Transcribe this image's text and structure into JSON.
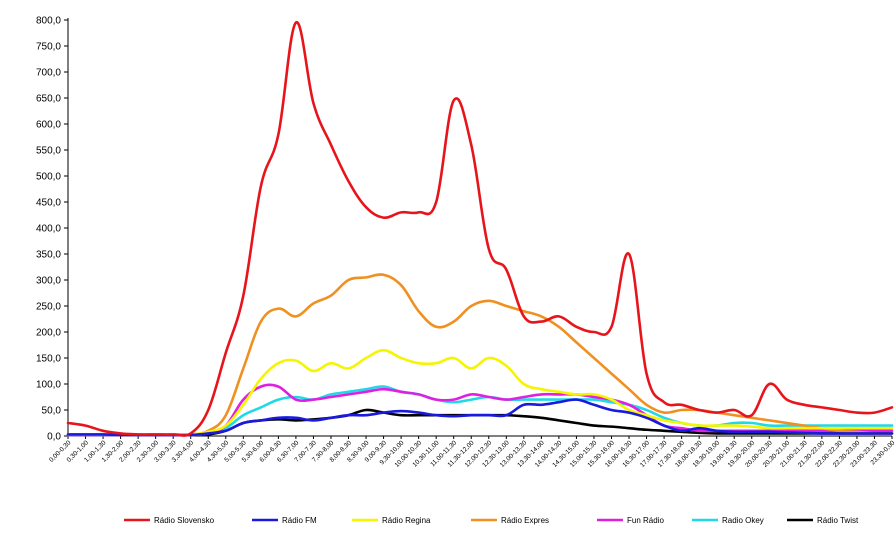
{
  "chart_data": {
    "type": "line",
    "title": "",
    "xlabel": "",
    "ylabel": "",
    "ylim": [
      0,
      800
    ],
    "yticks": [
      "0,0",
      "50,0",
      "100,0",
      "150,0",
      "200,0",
      "250,0",
      "300,0",
      "350,0",
      "400,0",
      "450,0",
      "500,0",
      "550,0",
      "600,0",
      "650,0",
      "700,0",
      "750,0",
      "800,0"
    ],
    "categories": [
      "0,00-0,30",
      "0,30-1,00",
      "1,00-1,30",
      "1,30-2,00",
      "2,00-2,30",
      "2,30-3,00",
      "3,00-3,30",
      "3,30-4,00",
      "4,00-4,30",
      "4,30-5,00",
      "5,00-5,30",
      "5,30-6,00",
      "6,00-6,30",
      "6,30-7,00",
      "7,00-7,30",
      "7,30-8,00",
      "8,00-8,30",
      "8,30-9,00",
      "9,00-9,30",
      "9,30-10,00",
      "10,00-10,30",
      "10,30-11,00",
      "11,00-11,30",
      "11,30-12,00",
      "12,00-12,30",
      "12,30-13,00",
      "13,00-13,30",
      "13,30-14,00",
      "14,00-14,30",
      "14,30-15,00",
      "15,00-15,30",
      "15,30-16,00",
      "16,00-16,30",
      "16,30-17,00",
      "17,00-17,30",
      "17,30-18,00",
      "18,00-18,30",
      "18,30-19,00",
      "19,00-19,30",
      "19,30-20,00",
      "20,00-20,30",
      "20,30-21,00",
      "21,00-21,30",
      "21,30-22,00",
      "22,00-22,30",
      "22,30-23,00",
      "23,00-23,30",
      "23,30-0,00"
    ],
    "grid": false,
    "legend_position": "bottom",
    "series": [
      {
        "name": "Rádio Slovensko",
        "color": "#e8141c",
        "values": [
          25,
          20,
          10,
          5,
          3,
          3,
          3,
          5,
          50,
          160,
          270,
          480,
          580,
          795,
          640,
          560,
          490,
          440,
          420,
          430,
          430,
          450,
          645,
          560,
          360,
          320,
          230,
          220,
          230,
          210,
          200,
          210,
          350,
          120,
          65,
          60,
          50,
          45,
          50,
          40,
          100,
          70,
          60,
          55,
          50,
          45,
          45,
          55
        ]
      },
      {
        "name": "Rádio FM",
        "color": "#1a1adf",
        "values": [
          3,
          3,
          3,
          2,
          2,
          2,
          2,
          2,
          5,
          10,
          25,
          30,
          35,
          35,
          30,
          35,
          40,
          40,
          45,
          48,
          45,
          40,
          38,
          40,
          40,
          40,
          60,
          60,
          65,
          70,
          60,
          50,
          45,
          35,
          20,
          10,
          15,
          10,
          8,
          8,
          8,
          7,
          6,
          5,
          5,
          5,
          5,
          5
        ]
      },
      {
        "name": "Rádio Regina",
        "color": "#f5f500",
        "values": [
          3,
          3,
          3,
          3,
          3,
          3,
          3,
          3,
          8,
          20,
          60,
          110,
          140,
          145,
          125,
          140,
          130,
          150,
          165,
          150,
          140,
          140,
          150,
          130,
          150,
          135,
          100,
          90,
          85,
          80,
          80,
          70,
          50,
          40,
          30,
          25,
          20,
          20,
          20,
          18,
          15,
          15,
          15,
          15,
          15,
          15,
          15,
          15
        ]
      },
      {
        "name": "Rádio Expres",
        "color": "#f09020",
        "values": [
          3,
          3,
          3,
          3,
          3,
          3,
          3,
          3,
          10,
          40,
          130,
          220,
          245,
          230,
          255,
          270,
          300,
          305,
          310,
          290,
          240,
          210,
          220,
          250,
          260,
          250,
          240,
          230,
          210,
          180,
          150,
          120,
          90,
          60,
          45,
          50,
          50,
          45,
          40,
          35,
          30,
          25,
          20,
          15,
          10,
          8,
          5,
          5
        ]
      },
      {
        "name": "Fun Rádio",
        "color": "#e020e0",
        "values": [
          2,
          2,
          2,
          2,
          2,
          2,
          2,
          2,
          5,
          20,
          70,
          95,
          95,
          70,
          70,
          75,
          80,
          85,
          90,
          85,
          80,
          70,
          70,
          80,
          75,
          70,
          75,
          80,
          80,
          80,
          75,
          70,
          60,
          40,
          20,
          15,
          10,
          10,
          10,
          10,
          10,
          10,
          10,
          10,
          10,
          10,
          10,
          10
        ]
      },
      {
        "name": "Radio Okey",
        "color": "#20d8e8",
        "values": [
          2,
          2,
          2,
          2,
          2,
          2,
          2,
          2,
          5,
          15,
          40,
          55,
          70,
          75,
          70,
          80,
          85,
          90,
          95,
          85,
          80,
          70,
          65,
          70,
          75,
          70,
          70,
          70,
          70,
          70,
          70,
          65,
          60,
          50,
          35,
          25,
          20,
          20,
          25,
          25,
          20,
          20,
          20,
          20,
          20,
          20,
          20,
          20
        ]
      },
      {
        "name": "Rádio Twist",
        "color": "#000000",
        "values": [
          2,
          2,
          2,
          2,
          2,
          2,
          2,
          2,
          3,
          10,
          25,
          30,
          32,
          30,
          32,
          35,
          40,
          50,
          45,
          40,
          40,
          40,
          40,
          40,
          40,
          40,
          38,
          35,
          30,
          25,
          20,
          18,
          15,
          12,
          10,
          8,
          6,
          5,
          5,
          5,
          5,
          5,
          5,
          5,
          5,
          5,
          5,
          5
        ]
      }
    ]
  }
}
